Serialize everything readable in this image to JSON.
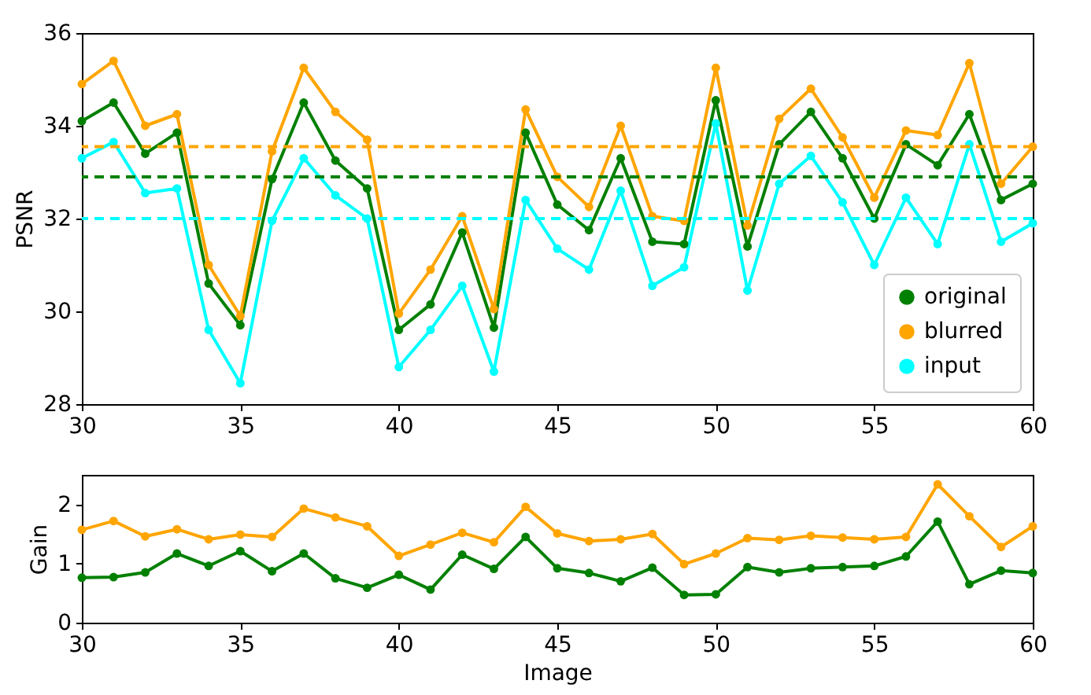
{
  "chart_data": [
    {
      "type": "line",
      "ylabel": "PSNR",
      "x": [
        30,
        31,
        32,
        33,
        34,
        35,
        36,
        37,
        38,
        39,
        40,
        41,
        42,
        43,
        44,
        45,
        46,
        47,
        48,
        49,
        50,
        51,
        52,
        53,
        54,
        55,
        56,
        57,
        58,
        59,
        60
      ],
      "series": [
        {
          "name": "original",
          "color": "#008000",
          "values": [
            34.1,
            34.5,
            33.4,
            33.85,
            30.6,
            29.7,
            32.85,
            34.5,
            33.25,
            32.65,
            29.6,
            30.15,
            31.7,
            29.65,
            33.85,
            32.3,
            31.75,
            33.3,
            31.5,
            31.45,
            34.55,
            31.4,
            33.6,
            34.3,
            33.3,
            32.0,
            33.6,
            33.15,
            34.25,
            32.4,
            32.75
          ]
        },
        {
          "name": "blurred",
          "color": "#ffa500",
          "values": [
            34.9,
            35.4,
            34.0,
            34.25,
            31.0,
            29.9,
            33.45,
            35.25,
            34.3,
            33.7,
            29.95,
            30.9,
            32.05,
            30.05,
            34.35,
            32.9,
            32.25,
            34.0,
            32.05,
            31.95,
            35.25,
            31.85,
            34.15,
            34.8,
            33.75,
            32.45,
            33.9,
            33.8,
            35.35,
            32.75,
            33.55
          ]
        },
        {
          "name": "input",
          "color": "#00ffff",
          "values": [
            33.3,
            33.65,
            32.55,
            32.65,
            29.6,
            28.45,
            31.95,
            33.3,
            32.5,
            32.0,
            28.8,
            29.6,
            30.55,
            28.7,
            32.4,
            31.35,
            30.9,
            32.6,
            30.55,
            30.95,
            34.05,
            30.45,
            32.75,
            33.35,
            32.35,
            31.0,
            32.45,
            31.45,
            33.6,
            31.5,
            31.9
          ]
        }
      ],
      "ref_lines": [
        {
          "axis": "y",
          "value": 32.9,
          "color": "#008000",
          "line_style": "dashed"
        },
        {
          "axis": "y",
          "value": 33.55,
          "color": "#ffa500",
          "line_style": "dashed"
        },
        {
          "axis": "y",
          "value": 32.0,
          "color": "#00ffff",
          "line_style": "dashed"
        }
      ],
      "xlim": [
        30,
        60
      ],
      "xticks": [
        30,
        35,
        40,
        45,
        50,
        55,
        60
      ],
      "ylim": [
        28,
        36
      ],
      "yticks": [
        28,
        30,
        32,
        34,
        36
      ],
      "legend": "bottom right",
      "marker": "circle",
      "line_style": "solid"
    },
    {
      "type": "line",
      "xlabel": "Image",
      "ylabel": "Gain",
      "x": [
        30,
        31,
        32,
        33,
        34,
        35,
        36,
        37,
        38,
        39,
        40,
        41,
        42,
        43,
        44,
        45,
        46,
        47,
        48,
        49,
        50,
        51,
        52,
        53,
        54,
        55,
        56,
        57,
        58,
        59,
        60
      ],
      "series": [
        {
          "color": "#008000",
          "values": [
            0.76,
            0.77,
            0.85,
            1.17,
            0.96,
            1.21,
            0.87,
            1.17,
            0.75,
            0.59,
            0.81,
            0.56,
            1.15,
            0.91,
            1.45,
            0.92,
            0.84,
            0.7,
            0.93,
            0.47,
            0.48,
            0.94,
            0.85,
            0.92,
            0.94,
            0.96,
            1.12,
            1.71,
            0.65,
            0.88,
            0.84
          ]
        },
        {
          "color": "#ffa500",
          "values": [
            1.57,
            1.72,
            1.46,
            1.58,
            1.41,
            1.49,
            1.45,
            1.93,
            1.78,
            1.63,
            1.13,
            1.32,
            1.52,
            1.36,
            1.96,
            1.51,
            1.38,
            1.41,
            1.5,
            0.99,
            1.17,
            1.43,
            1.4,
            1.47,
            1.44,
            1.41,
            1.45,
            2.34,
            1.8,
            1.28,
            1.63
          ]
        }
      ],
      "xlim": [
        30,
        60
      ],
      "xticks": [
        30,
        35,
        40,
        45,
        50,
        55,
        60
      ],
      "ylim": [
        0,
        2.5
      ],
      "yticks": [
        0,
        1,
        2
      ],
      "legend": false,
      "marker": "circle",
      "line_style": "solid"
    }
  ]
}
